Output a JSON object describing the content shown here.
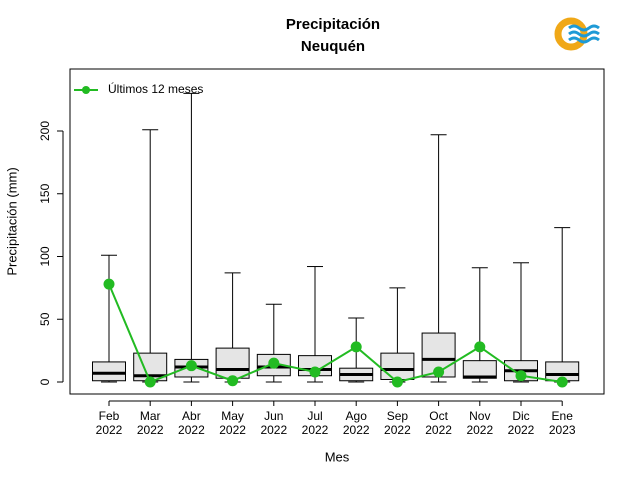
{
  "title": "Precipitación",
  "subtitle": "Neuquén",
  "logo_icon": "weather-service-logo-icon",
  "colors": {
    "line": "#22bb22",
    "box_fill": "#e5e5e5",
    "logo_orange": "#f0a818",
    "logo_blue": "#1e9ad6"
  },
  "chart_data": {
    "type": "box",
    "xlabel": "Mes",
    "ylabel": "Precipitación (mm)",
    "ylim": [
      0,
      240
    ],
    "yticks": [
      0,
      50,
      100,
      150,
      200
    ],
    "grid": false,
    "legend": {
      "position": "top-left",
      "entries": [
        "Últimos 12 meses"
      ]
    },
    "categories": [
      "Feb\n2022",
      "Mar\n2022",
      "Abr\n2022",
      "May\n2022",
      "Jun\n2022",
      "Jul\n2022",
      "Ago\n2022",
      "Sep\n2022",
      "Oct\n2022",
      "Nov\n2022",
      "Dic\n2022",
      "Ene\n2023"
    ],
    "boxes": [
      {
        "min": 0,
        "q1": 1,
        "median": 7,
        "q3": 16,
        "max": 101
      },
      {
        "min": 0,
        "q1": 1,
        "median": 5,
        "q3": 23,
        "max": 201
      },
      {
        "min": 0,
        "q1": 4,
        "median": 12,
        "q3": 18,
        "max": 230
      },
      {
        "min": 0,
        "q1": 3,
        "median": 10,
        "q3": 27,
        "max": 87
      },
      {
        "min": 0,
        "q1": 5,
        "median": 12,
        "q3": 22,
        "max": 62
      },
      {
        "min": 0,
        "q1": 5,
        "median": 10,
        "q3": 21,
        "max": 92
      },
      {
        "min": 0,
        "q1": 1,
        "median": 6,
        "q3": 11,
        "max": 51
      },
      {
        "min": 0,
        "q1": 2,
        "median": 10,
        "q3": 23,
        "max": 75
      },
      {
        "min": 0,
        "q1": 4,
        "median": 18,
        "q3": 39,
        "max": 197
      },
      {
        "min": 0,
        "q1": 3,
        "median": 4,
        "q3": 17,
        "max": 91
      },
      {
        "min": 0,
        "q1": 1,
        "median": 9,
        "q3": 17,
        "max": 95
      },
      {
        "min": 0,
        "q1": 1,
        "median": 6,
        "q3": 16,
        "max": 123
      }
    ],
    "series": [
      {
        "name": "Últimos 12 meses",
        "values": [
          78,
          0,
          13,
          1,
          15,
          8,
          28,
          0,
          8,
          28,
          5,
          0
        ]
      }
    ]
  }
}
